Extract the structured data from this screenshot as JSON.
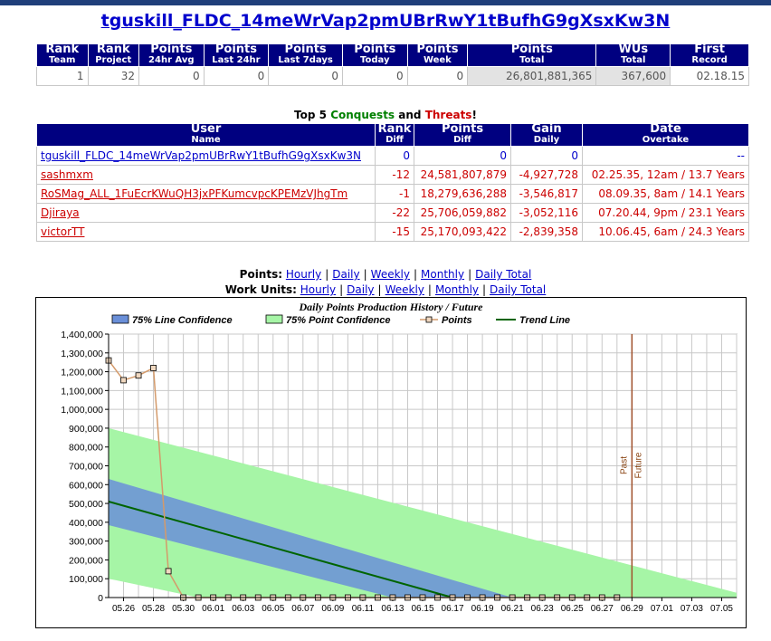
{
  "title": "tguskill_FLDC_14meWrVap2pmUBrRwY1tBufhG9gXsxKw3N",
  "rank_table": {
    "headers": [
      {
        "big": "Rank",
        "small": "Team"
      },
      {
        "big": "Rank",
        "small": "Project"
      },
      {
        "big": "Points",
        "small": "24hr Avg"
      },
      {
        "big": "Points",
        "small": "Last 24hr"
      },
      {
        "big": "Points",
        "small": "Last 7days"
      },
      {
        "big": "Points",
        "small": "Today"
      },
      {
        "big": "Points",
        "small": "Week"
      },
      {
        "big": "Points",
        "small": "Total"
      },
      {
        "big": "WUs",
        "small": "Total"
      },
      {
        "big": "First",
        "small": "Record"
      }
    ],
    "values": [
      "1",
      "32",
      "0",
      "0",
      "0",
      "0",
      "0",
      "26,801,881,365",
      "367,600",
      "02.18.15"
    ]
  },
  "top5": {
    "title_prefix": "Top 5",
    "conquests": "Conquests",
    "and": "and",
    "threats": "Threats",
    "excl": "!",
    "headers": [
      {
        "big": "User",
        "small": "Name"
      },
      {
        "big": "Rank",
        "small": "Diff"
      },
      {
        "big": "Points",
        "small": "Diff"
      },
      {
        "big": "Gain",
        "small": "Daily"
      },
      {
        "big": "Date",
        "small": "Overtake"
      }
    ],
    "rows": [
      {
        "user": "tguskill_FLDC_14meWrVap2pmUBrRwY1tBufhG9gXsxKw3N",
        "rank": "0",
        "points": "0",
        "gain": "0",
        "date": "--"
      },
      {
        "user": "sashmxm",
        "rank": "-12",
        "points": "24,581,807,879",
        "gain": "-4,927,728",
        "date": "02.25.35, 12am / 13.7 Years"
      },
      {
        "user": "RoSMag_ALL_1FuEcrKWuQH3jxPFKumcvpcKPEMzVJhgTm",
        "rank": "-1",
        "points": "18,279,636,288",
        "gain": "-3,546,817",
        "date": "08.09.35, 8am / 14.1 Years"
      },
      {
        "user": "Djiraya",
        "rank": "-22",
        "points": "25,706,059,882",
        "gain": "-3,052,116",
        "date": "07.20.44, 9pm / 23.1 Years"
      },
      {
        "user": "victorTT",
        "rank": "-15",
        "points": "25,170,093,422",
        "gain": "-2,839,358",
        "date": "10.06.45, 6am / 24.3 Years"
      }
    ]
  },
  "links": {
    "points_label": "Points:",
    "wu_label": "Work Units:",
    "items": [
      "Hourly",
      "Daily",
      "Weekly",
      "Monthly",
      "Daily Total"
    ],
    "sep": "|"
  },
  "chart_data": {
    "type": "line",
    "title": "Daily Points Production History / Future",
    "legend": [
      "75% Line Confidence",
      "75% Point Confidence",
      "Points",
      "Trend Line"
    ],
    "legend_placement": "top",
    "colors": {
      "line_conf": "#6a8fd8",
      "point_conf": "#a6f5a6",
      "points": "#d49a6a",
      "trend": "#006400",
      "divider": "#a0522d"
    },
    "ylim": [
      0,
      1400000
    ],
    "yticks": [
      "0",
      "100,000",
      "200,000",
      "300,000",
      "400,000",
      "500,000",
      "600,000",
      "700,000",
      "800,000",
      "900,000",
      "1,000,000",
      "1,100,000",
      "1,200,000",
      "1,300,000",
      "1,400,000"
    ],
    "xticks": [
      "05.26",
      "05.28",
      "05.30",
      "06.01",
      "06.03",
      "06.05",
      "06.07",
      "06.09",
      "06.11",
      "06.13",
      "06.15",
      "06.17",
      "06.19",
      "06.21",
      "06.23",
      "06.25",
      "06.27",
      "06.29",
      "07.01",
      "07.03",
      "07.05"
    ],
    "x_start": "05.25",
    "x_end": "07.06",
    "points_series": {
      "name": "Points",
      "x": [
        "05.25",
        "05.26",
        "05.27",
        "05.28",
        "05.29",
        "05.30",
        "05.31",
        "06.01",
        "06.02",
        "06.03",
        "06.04",
        "06.05",
        "06.06",
        "06.07",
        "06.08",
        "06.09",
        "06.10",
        "06.11",
        "06.12",
        "06.13",
        "06.14",
        "06.15",
        "06.16",
        "06.17",
        "06.18",
        "06.19",
        "06.20",
        "06.21",
        "06.22",
        "06.23",
        "06.24",
        "06.25",
        "06.26",
        "06.27",
        "06.28"
      ],
      "y": [
        1260000,
        1155000,
        1180000,
        1220000,
        140000,
        0,
        0,
        0,
        0,
        0,
        0,
        0,
        0,
        0,
        0,
        0,
        0,
        0,
        0,
        0,
        0,
        0,
        0,
        0,
        0,
        0,
        0,
        0,
        0,
        0,
        0,
        0,
        0,
        0,
        0
      ]
    },
    "trend_line": {
      "x": [
        "05.25",
        "06.17"
      ],
      "y": [
        510000,
        0
      ]
    },
    "line_confidence": {
      "upper": {
        "x": [
          "05.25",
          "06.21"
        ],
        "y": [
          630000,
          0
        ]
      },
      "lower": {
        "x": [
          "05.25",
          "06.13"
        ],
        "y": [
          385000,
          0
        ]
      }
    },
    "point_confidence": {
      "upper": {
        "x": [
          "05.25",
          "07.06"
        ],
        "y": [
          900000,
          25000
        ]
      },
      "lower": {
        "x": [
          "05.25",
          "05.31"
        ],
        "y": [
          100000,
          0
        ]
      }
    },
    "divider": {
      "x": "06.29",
      "labels": [
        "Past",
        "Future"
      ]
    }
  }
}
